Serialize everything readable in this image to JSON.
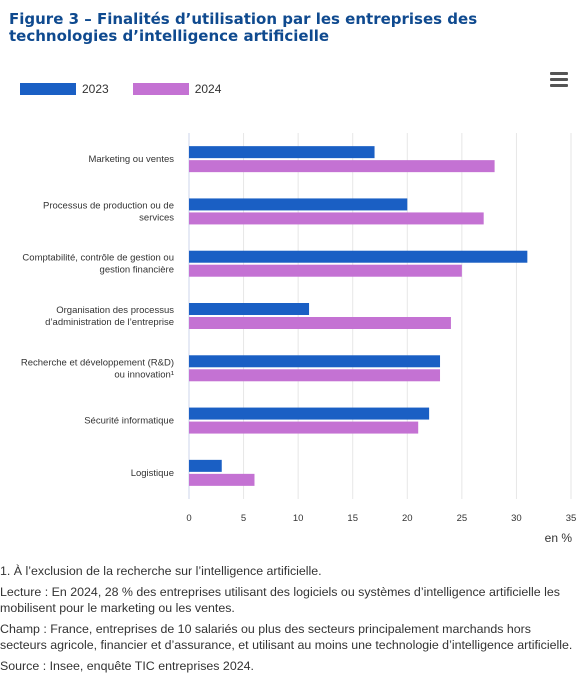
{
  "title": "Figure 3 – Finalités d’utilisation par les entreprises des technologies d’intelligence artificielle",
  "menu_icon": "hamburger-menu-icon",
  "colors": {
    "s2023": "#1a5fc4",
    "s2024": "#c472d3"
  },
  "chart_data": {
    "type": "bar",
    "orientation": "horizontal",
    "categories": [
      "Marketing ou ventes",
      "Processus de production ou de services",
      "Comptabilité, contrôle de gestion ou gestion financière",
      "Organisation des processus d’administration de l’entreprise",
      "Recherche et développement (R&D) ou innovation¹",
      "Sécurité informatique",
      "Logistique"
    ],
    "category_lines": [
      [
        "Marketing ou ventes"
      ],
      [
        "Processus de production ou de",
        "services"
      ],
      [
        "Comptabilité, contrôle de gestion ou",
        "gestion financière"
      ],
      [
        "Organisation des processus",
        "d’administration de l’entreprise"
      ],
      [
        "Recherche et développement (R&D)",
        "ou innovation¹"
      ],
      [
        "Sécurité informatique"
      ],
      [
        "Logistique"
      ]
    ],
    "series": [
      {
        "name": "2023",
        "values": [
          17,
          20,
          31,
          11,
          23,
          22,
          3
        ]
      },
      {
        "name": "2024",
        "values": [
          28,
          27,
          25,
          24,
          23,
          21,
          6
        ]
      }
    ],
    "xlim": [
      0,
      35
    ],
    "xticks": [
      0,
      5,
      10,
      15,
      20,
      25,
      30,
      35
    ],
    "xlabel": "en %",
    "grid": true,
    "legend_position": "top-left"
  },
  "notes": {
    "n1": "1. À l’exclusion de la recherche sur l’intelligence artificielle.",
    "lecture": "Lecture : En 2024, 28 % des entreprises utilisant des logiciels ou systèmes d’intelligence artificielle les mobilisent pour le marketing ou les ventes.",
    "champ": "Champ : France, entreprises de 10 salariés ou plus des secteurs principalement marchands hors secteurs agricole, financier et d’assurance, et utilisant au moins une technologie d’intelligence artificielle.",
    "source": "Source : Insee, enquête TIC entreprises 2024."
  }
}
